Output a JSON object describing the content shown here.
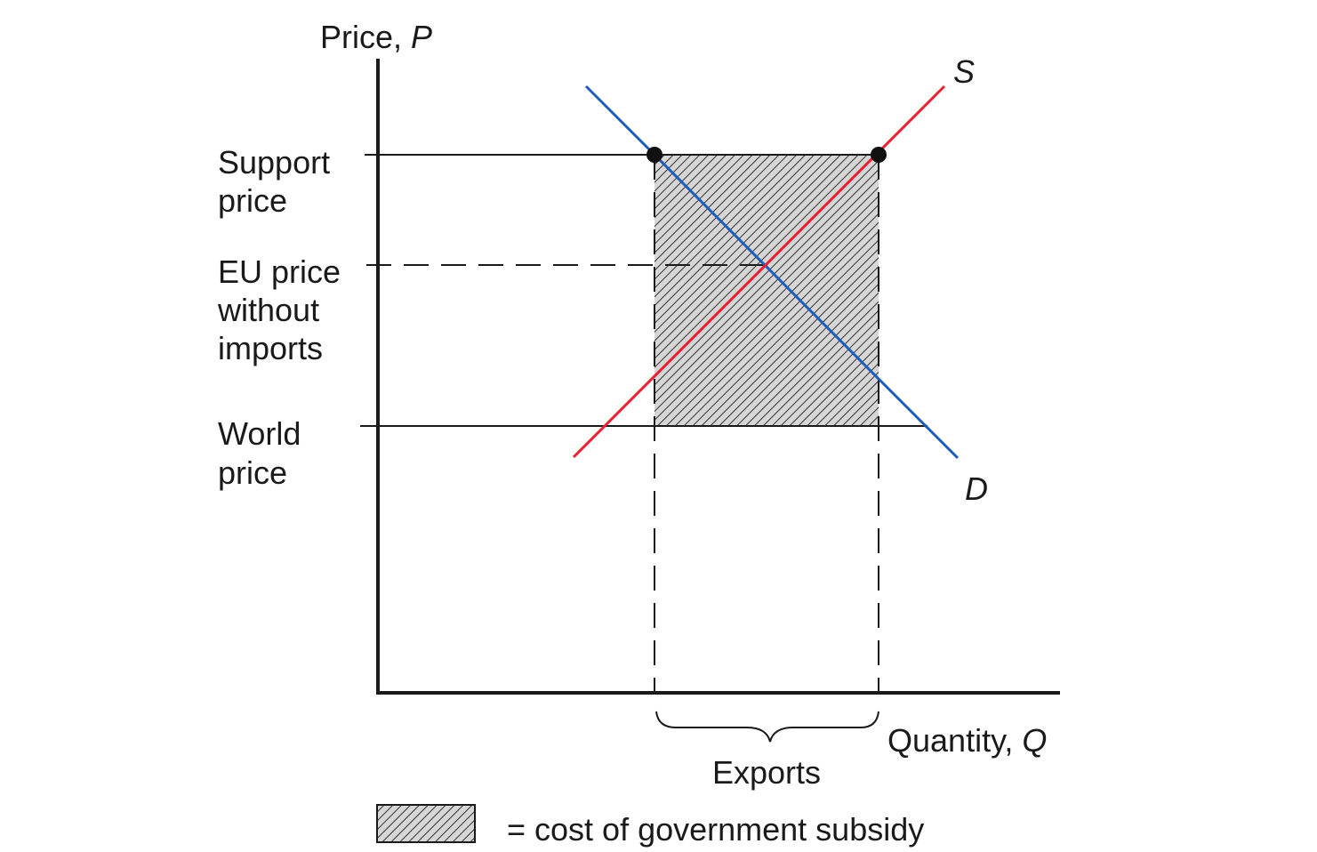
{
  "axes": {
    "y_label": "Price, ",
    "y_symbol": "P",
    "x_label": "Quantity, ",
    "x_symbol": "Q"
  },
  "curves": {
    "supply": {
      "label": "S",
      "color": "#e8202f"
    },
    "demand": {
      "label": "D",
      "color": "#1f5db8"
    }
  },
  "price_levels": {
    "support": [
      "Support",
      "price"
    ],
    "eu_no_imports": [
      "EU price",
      "without",
      "imports"
    ],
    "world": [
      "World",
      "price"
    ]
  },
  "exports_label": "Exports",
  "legend": {
    "text": "= cost of government subsidy"
  },
  "colors": {
    "axis": "#1a1a1a",
    "hatch": "#333333",
    "hatch_bg": "#d6d6d6"
  }
}
